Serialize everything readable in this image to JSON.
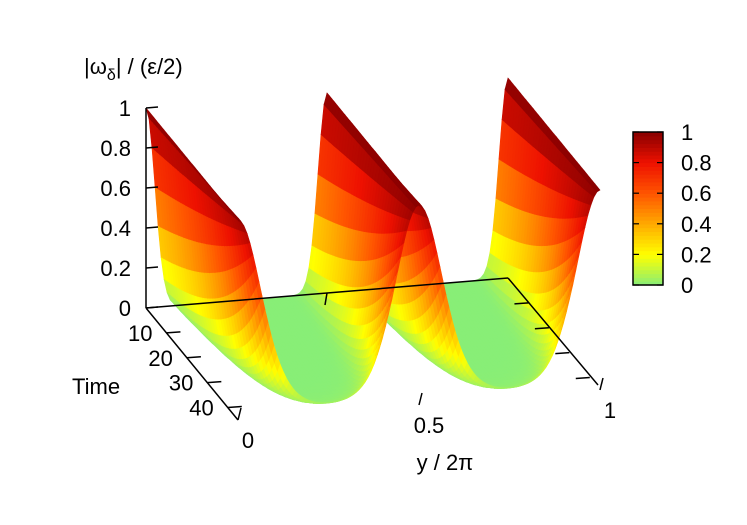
{
  "chart_data": {
    "type": "surface",
    "title": "",
    "zlabel": {
      "prefix": "|ω",
      "sub": "δ",
      "suffix": "|  /  (ε/2)"
    },
    "xlabel": "y / 2π",
    "ylabel": "Time",
    "x_ticks": [
      "0",
      "0.5",
      "1"
    ],
    "y_ticks": [
      "10",
      "20",
      "30",
      "40"
    ],
    "z_ticks": [
      "0",
      "0.2",
      "0.4",
      "0.6",
      "0.8",
      "1"
    ],
    "xlim": [
      0,
      1
    ],
    "ylim": [
      0,
      45
    ],
    "zlim": [
      0,
      1
    ],
    "surface": {
      "description_of_form": "periodic peaks in y, smoothing as time grows",
      "periods": 2,
      "peak_positions_y": [
        0.0,
        0.5,
        1.0
      ],
      "front_time": 45,
      "back_time": 0
    },
    "colorbar": {
      "ticks": [
        "0",
        "0.2",
        "0.4",
        "0.6",
        "0.8",
        "1"
      ],
      "colors": [
        "#88ee77",
        "#ffff00",
        "#ffaa00",
        "#ff5500",
        "#ee1100",
        "#880000"
      ]
    }
  }
}
